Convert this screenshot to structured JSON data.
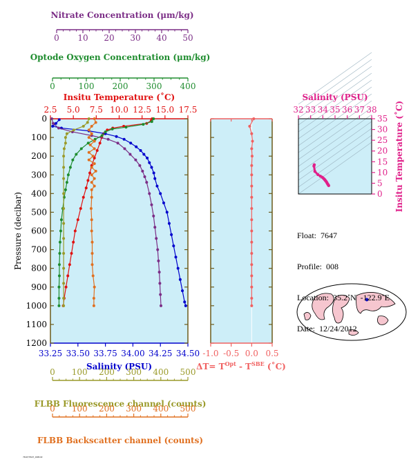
{
  "colors": {
    "nitrate": "#7b2d86",
    "oxygen": "#1e8c2e",
    "temperature": "#e01010",
    "salinity": "#0000cc",
    "fluorescence": "#9a9a2a",
    "backscatter": "#e07020",
    "dt": "#f06060",
    "ts": "#e0208a",
    "panel_bg": "#cdeef8",
    "axis": "#6b5a1a"
  },
  "axes": {
    "nitrate": {
      "label": "Nitrate Concentration (μm/kg)",
      "ticks": [
        "0",
        "10",
        "20",
        "30",
        "40",
        "50"
      ],
      "range": [
        0,
        50
      ]
    },
    "oxygen": {
      "label": "Optode Oxygen Concentration (μm/kg)",
      "ticks": [
        "0",
        "100",
        "200",
        "300",
        "400"
      ],
      "range": [
        0,
        400
      ]
    },
    "temperature": {
      "label": "Insitu Temperature (˚C)",
      "ticks": [
        "2.5",
        "5.0",
        "7.5",
        "10.0",
        "12.5",
        "15.0",
        "17.5"
      ],
      "range": [
        2.5,
        17.5
      ]
    },
    "salinity": {
      "label": "Salinity (PSU)",
      "ticks": [
        "33.25",
        "33.50",
        "33.75",
        "34.00",
        "34.25",
        "34.50"
      ],
      "range": [
        33.25,
        34.5
      ]
    },
    "fluorescence": {
      "label": "FLBB Fluorescence channel (counts)",
      "ticks": [
        "0",
        "100",
        "200",
        "300",
        "400",
        "500"
      ],
      "range": [
        0,
        500
      ]
    },
    "backscatter": {
      "label": "FLBB Backscatter channel (counts)",
      "ticks": [
        "0",
        "100",
        "200",
        "300",
        "400",
        "500"
      ],
      "range": [
        0,
        500
      ]
    },
    "pressure": {
      "label": "Pressure (decibar)",
      "ticks": [
        "0",
        "100",
        "200",
        "300",
        "400",
        "500",
        "600",
        "700",
        "800",
        "900",
        "1000",
        "1100",
        "1200"
      ],
      "range": [
        0,
        1200
      ]
    },
    "dt": {
      "label_main": "ΔT= T",
      "label_sup1": "Opt",
      "label_mid": " - T",
      "label_sup2": "SBE",
      "label_end": " (˚C)",
      "ticks": [
        "-1.0",
        "-0.5",
        "0.0",
        "0.5"
      ],
      "range": [
        -1.0,
        0.5
      ]
    },
    "ts_salinity": {
      "label": "Salinity (PSU)",
      "ticks": [
        "32",
        "33",
        "34",
        "35",
        "36",
        "37",
        "38"
      ],
      "range": [
        32,
        38
      ]
    },
    "ts_temperature": {
      "label": "Insitu Temperature (˚C)",
      "ticks": [
        "0",
        "5",
        "10",
        "15",
        "20",
        "25",
        "30",
        "35"
      ],
      "range": [
        0,
        35
      ]
    }
  },
  "info": {
    "float": "Float:  7647",
    "profile": "Profile:  008",
    "location": "Location:  35.2˚N  -122.9˚E",
    "date": "Date:  12/24/2012"
  },
  "footer": "7647/7647_008.txt",
  "chart_data": [
    {
      "type": "line",
      "name": "profile-panel",
      "y_axis": "Pressure (decibar)",
      "ylim": [
        1200,
        0
      ],
      "series": [
        {
          "name": "Insitu Temperature",
          "axis": "temperature",
          "color": "#e01010",
          "points": [
            [
              13.6,
              0
            ],
            [
              13.5,
              10
            ],
            [
              13.0,
              25
            ],
            [
              10.5,
              40
            ],
            [
              9.3,
              50
            ],
            [
              8.7,
              60
            ],
            [
              8.3,
              80
            ],
            [
              8.1,
              100
            ],
            [
              7.9,
              130
            ],
            [
              7.6,
              170
            ],
            [
              7.3,
              210
            ],
            [
              7.0,
              250
            ],
            [
              6.8,
              290
            ],
            [
              6.6,
              330
            ],
            [
              6.4,
              370
            ],
            [
              6.1,
              420
            ],
            [
              5.8,
              480
            ],
            [
              5.5,
              540
            ],
            [
              5.2,
              600
            ],
            [
              5.0,
              660
            ],
            [
              4.8,
              720
            ],
            [
              4.6,
              780
            ],
            [
              4.4,
              840
            ],
            [
              4.2,
              900
            ],
            [
              4.0,
              960
            ],
            [
              3.9,
              1000
            ]
          ]
        },
        {
          "name": "Salinity",
          "axis": "salinity",
          "color": "#0000cc",
          "points": [
            [
              33.33,
              5
            ],
            [
              33.3,
              25
            ],
            [
              33.27,
              40
            ],
            [
              33.35,
              50
            ],
            [
              33.6,
              65
            ],
            [
              33.75,
              80
            ],
            [
              33.85,
              95
            ],
            [
              33.92,
              110
            ],
            [
              33.98,
              130
            ],
            [
              34.03,
              150
            ],
            [
              34.07,
              170
            ],
            [
              34.1,
              190
            ],
            [
              34.13,
              210
            ],
            [
              34.15,
              235
            ],
            [
              34.17,
              260
            ],
            [
              34.19,
              290
            ],
            [
              34.2,
              320
            ],
            [
              34.22,
              360
            ],
            [
              34.25,
              400
            ],
            [
              34.28,
              450
            ],
            [
              34.31,
              500
            ],
            [
              34.33,
              560
            ],
            [
              34.35,
              620
            ],
            [
              34.37,
              680
            ],
            [
              34.39,
              740
            ],
            [
              34.41,
              800
            ],
            [
              34.43,
              860
            ],
            [
              34.45,
              920
            ],
            [
              34.47,
              980
            ],
            [
              34.48,
              1000
            ]
          ]
        },
        {
          "name": "Nitrate",
          "axis": "nitrate",
          "color": "#7b2d86",
          "points": [
            [
              0.5,
              0
            ],
            [
              1,
              25
            ],
            [
              3,
              50
            ],
            [
              8,
              70
            ],
            [
              15,
              90
            ],
            [
              21,
              110
            ],
            [
              24.5,
              130
            ],
            [
              27,
              160
            ],
            [
              29,
              190
            ],
            [
              31,
              220
            ],
            [
              32.5,
              250
            ],
            [
              33.5,
              280
            ],
            [
              34.3,
              310
            ],
            [
              35,
              340
            ],
            [
              36,
              400
            ],
            [
              36.8,
              460
            ],
            [
              37.5,
              520
            ],
            [
              38,
              580
            ],
            [
              38.5,
              640
            ],
            [
              39,
              700
            ],
            [
              39.3,
              760
            ],
            [
              39.6,
              820
            ],
            [
              39.8,
              880
            ],
            [
              40,
              940
            ],
            [
              40.2,
              1000
            ]
          ]
        },
        {
          "name": "Optode Oxygen",
          "axis": "oxygen",
          "color": "#1e8c2e",
          "points": [
            [
              300,
              0
            ],
            [
              295,
              15
            ],
            [
              270,
              30
            ],
            [
              220,
              45
            ],
            [
              180,
              55
            ],
            [
              160,
              70
            ],
            [
              150,
              90
            ],
            [
              130,
              110
            ],
            [
              110,
              130
            ],
            [
              90,
              160
            ],
            [
              75,
              190
            ],
            [
              65,
              220
            ],
            [
              58,
              260
            ],
            [
              52,
              300
            ],
            [
              48,
              340
            ],
            [
              44,
              380
            ],
            [
              40,
              420
            ],
            [
              36,
              480
            ],
            [
              32,
              540
            ],
            [
              30,
              600
            ],
            [
              28,
              660
            ],
            [
              27,
              720
            ],
            [
              26,
              780
            ],
            [
              26,
              840
            ],
            [
              25,
              900
            ],
            [
              25,
              960
            ],
            [
              25,
              1000
            ]
          ]
        },
        {
          "name": "FLBB Fluorescence",
          "axis": "fluorescence",
          "color": "#9a9a2a",
          "points": [
            [
              140,
              0
            ],
            [
              135,
              20
            ],
            [
              120,
              40
            ],
            [
              85,
              60
            ],
            [
              60,
              80
            ],
            [
              55,
              100
            ],
            [
              55,
              130
            ],
            [
              50,
              160
            ],
            [
              48,
              200
            ],
            [
              48,
              260
            ],
            [
              48,
              320
            ],
            [
              48,
              400
            ],
            [
              48,
              480
            ],
            [
              48,
              560
            ],
            [
              48,
              640
            ],
            [
              48,
              720
            ],
            [
              48,
              800
            ],
            [
              48,
              880
            ],
            [
              48,
              960
            ],
            [
              48,
              1000
            ]
          ]
        },
        {
          "name": "FLBB Backscatter",
          "axis": "backscatter",
          "color": "#e07020",
          "points": [
            [
              160,
              0
            ],
            [
              165,
              20
            ],
            [
              150,
              40
            ],
            [
              140,
              60
            ],
            [
              150,
              80
            ],
            [
              140,
              100
            ],
            [
              160,
              120
            ],
            [
              145,
              140
            ],
            [
              160,
              160
            ],
            [
              140,
              180
            ],
            [
              155,
              200
            ],
            [
              140,
              220
            ],
            [
              160,
              240
            ],
            [
              150,
              260
            ],
            [
              165,
              280
            ],
            [
              150,
              300
            ],
            [
              160,
              320
            ],
            [
              150,
              340
            ],
            [
              160,
              360
            ],
            [
              150,
              380
            ],
            [
              150,
              420
            ],
            [
              148,
              480
            ],
            [
              150,
              540
            ],
            [
              150,
              600
            ],
            [
              152,
              660
            ],
            [
              152,
              720
            ],
            [
              152,
              780
            ],
            [
              155,
              840
            ],
            [
              160,
              900
            ],
            [
              158,
              960
            ],
            [
              158,
              1000
            ]
          ]
        }
      ]
    },
    {
      "type": "line",
      "name": "dt-panel",
      "x_axis": "ΔT",
      "xlim": [
        -1.0,
        0.5
      ],
      "ylim": [
        1200,
        0
      ],
      "series": [
        {
          "name": "ΔT",
          "color": "#f06060",
          "points": [
            [
              0.05,
              0
            ],
            [
              -0.05,
              40
            ],
            [
              0.0,
              80
            ],
            [
              0.02,
              120
            ],
            [
              0.0,
              160
            ],
            [
              0.01,
              200
            ],
            [
              0.0,
              250
            ],
            [
              0.0,
              300
            ],
            [
              0.0,
              360
            ],
            [
              0.0,
              420
            ],
            [
              0.0,
              480
            ],
            [
              0.0,
              540
            ],
            [
              0.0,
              600
            ],
            [
              0.0,
              660
            ],
            [
              0.0,
              720
            ],
            [
              0.0,
              780
            ],
            [
              0.0,
              840
            ],
            [
              0.0,
              900
            ],
            [
              0.0,
              960
            ],
            [
              0.0,
              1000
            ]
          ]
        }
      ]
    },
    {
      "type": "scatter",
      "name": "ts-panel",
      "x_axis": "Salinity (PSU)",
      "y_axis": "Insitu Temperature (˚C)",
      "xlim": [
        32,
        38
      ],
      "ylim": [
        0,
        35
      ],
      "series": [
        {
          "name": "T-S",
          "color": "#e0208a",
          "points": [
            [
              33.3,
              13.6
            ],
            [
              33.27,
              13.0
            ],
            [
              33.35,
              10.5
            ],
            [
              33.6,
              9.0
            ],
            [
              33.8,
              8.3
            ],
            [
              33.95,
              7.8
            ],
            [
              34.05,
              7.3
            ],
            [
              34.12,
              6.9
            ],
            [
              34.17,
              6.6
            ],
            [
              34.2,
              6.3
            ],
            [
              34.25,
              6.0
            ],
            [
              34.3,
              5.6
            ],
            [
              34.35,
              5.1
            ],
            [
              34.4,
              4.6
            ],
            [
              34.45,
              4.2
            ],
            [
              34.48,
              3.9
            ]
          ]
        }
      ]
    }
  ]
}
